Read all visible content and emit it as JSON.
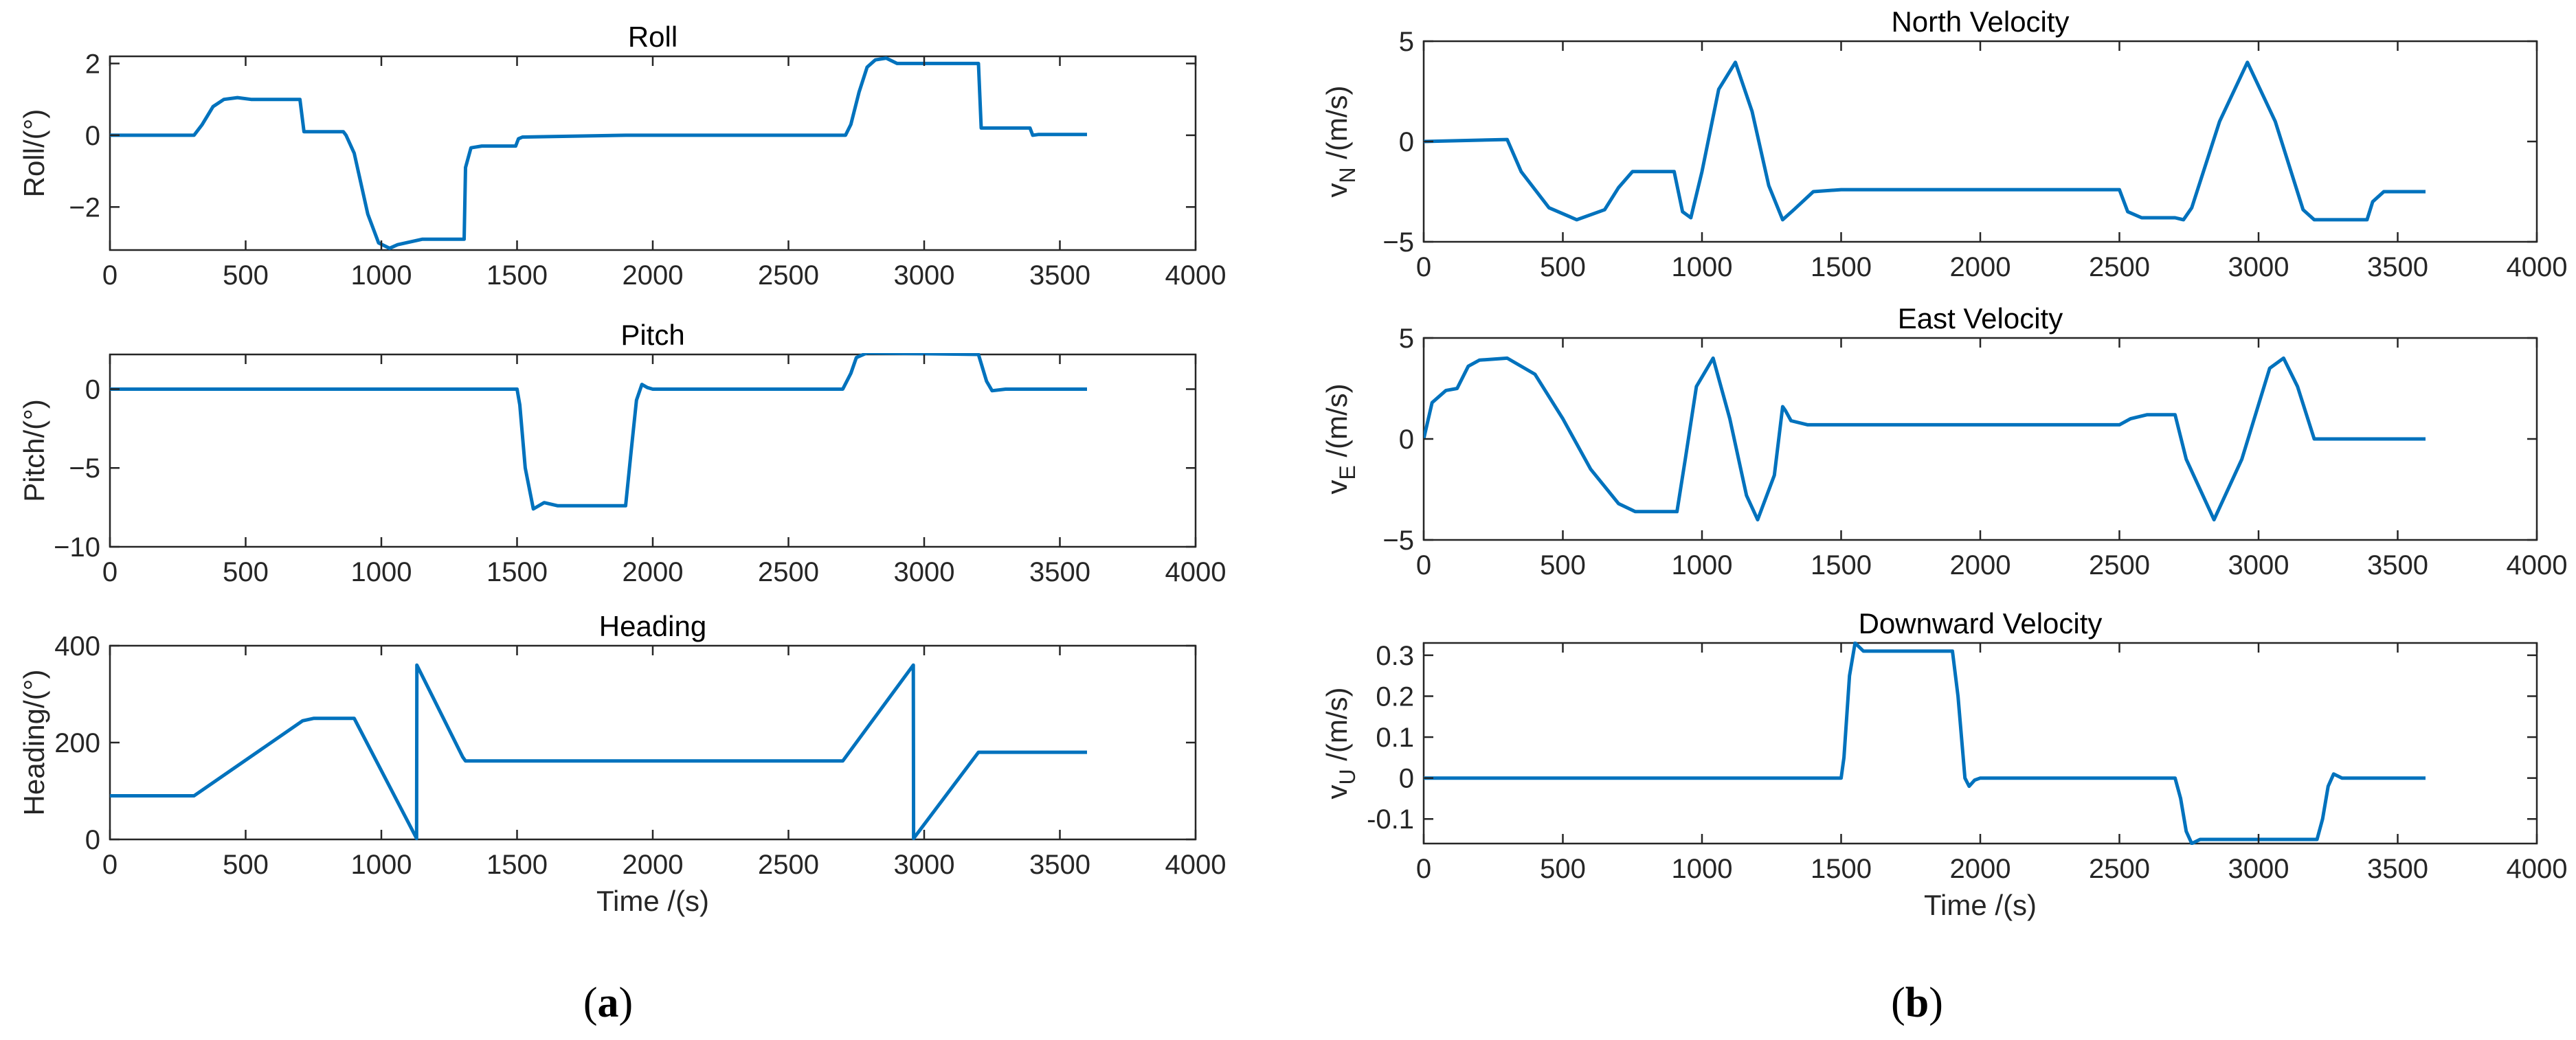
{
  "figure": {
    "panel_labels": [
      {
        "open": "(",
        "letter": "a",
        "close": ")"
      },
      {
        "open": "(",
        "letter": "b",
        "close": ")"
      }
    ]
  },
  "colors": {
    "line": "#0072BD",
    "axis": "#262626"
  },
  "chart_data": [
    {
      "id": "roll",
      "type": "line",
      "title": "Roll",
      "xlabel": "",
      "ylabel": "Roll/(°)",
      "xlim": [
        0,
        4000
      ],
      "ylim": [
        -3.2,
        2.2
      ],
      "xticks": [
        0,
        500,
        1000,
        1500,
        2000,
        2500,
        3000,
        3500,
        4000
      ],
      "yticks": [
        -2,
        0,
        2
      ],
      "ytick_labels": [
        "−2",
        "0",
        "2"
      ],
      "x": [
        0,
        310,
        340,
        380,
        420,
        470,
        520,
        700,
        715,
        860,
        870,
        900,
        950,
        990,
        1030,
        1060,
        1150,
        1305,
        1310,
        1330,
        1370,
        1495,
        1505,
        1520,
        1900,
        2000,
        2710,
        2730,
        2760,
        2790,
        2820,
        2860,
        2900,
        3200,
        3210,
        3240,
        3390,
        3400,
        3420,
        3600
      ],
      "y": [
        0,
        0,
        0.3,
        0.8,
        1.0,
        1.05,
        1.0,
        1.0,
        0.1,
        0.1,
        0,
        -0.5,
        -2.2,
        -3.0,
        -3.15,
        -3.05,
        -2.9,
        -2.9,
        -0.9,
        -0.35,
        -0.3,
        -0.3,
        -0.1,
        -0.05,
        0,
        0,
        0,
        0.3,
        1.2,
        1.9,
        2.1,
        2.15,
        2.0,
        2.0,
        0.2,
        0.2,
        0.2,
        0.0,
        0.02,
        0.02
      ]
    },
    {
      "id": "pitch",
      "type": "line",
      "title": "Pitch",
      "xlabel": "",
      "ylabel": "Pitch/(°)",
      "xlim": [
        0,
        4000
      ],
      "ylim": [
        -10,
        2.2
      ],
      "xticks": [
        0,
        500,
        1000,
        1500,
        2000,
        2500,
        3000,
        3500,
        4000
      ],
      "yticks": [
        -10,
        -5,
        0
      ],
      "ytick_labels": [
        "−10",
        "−5",
        "0"
      ],
      "x": [
        0,
        1500,
        1510,
        1530,
        1560,
        1600,
        1650,
        1900,
        1920,
        1940,
        1960,
        1980,
        2000,
        2020,
        2700,
        2730,
        2750,
        2790,
        3200,
        3230,
        3250,
        3300,
        3600
      ],
      "y": [
        0,
        0,
        -1,
        -5,
        -7.6,
        -7.2,
        -7.4,
        -7.4,
        -4,
        -0.7,
        0.3,
        0.1,
        0,
        0,
        0,
        1.0,
        2.0,
        2.3,
        2.2,
        0.5,
        -0.1,
        0,
        0
      ]
    },
    {
      "id": "heading",
      "type": "line",
      "title": "Heading",
      "xlabel": "Time /(s)",
      "ylabel": "Heading/(°)",
      "xlim": [
        0,
        4000
      ],
      "ylim": [
        0,
        400
      ],
      "xticks": [
        0,
        500,
        1000,
        1500,
        2000,
        2500,
        3000,
        3500,
        4000
      ],
      "yticks": [
        0,
        200,
        400
      ],
      "ytick_labels": [
        "0",
        "200",
        "400"
      ],
      "x": [
        0,
        310,
        710,
        750,
        900,
        1130,
        1131,
        1300,
        1310,
        2700,
        2960,
        2961,
        3200,
        3600
      ],
      "y": [
        90,
        90,
        245,
        250,
        250,
        2,
        360,
        170,
        162,
        162,
        360,
        2,
        180,
        180
      ]
    },
    {
      "id": "north_velocity",
      "type": "line",
      "title": "North Velocity",
      "xlabel": "",
      "ylabel": "v_N /(m/s)",
      "xlim": [
        0,
        4000
      ],
      "ylim": [
        -5,
        5
      ],
      "xticks": [
        0,
        500,
        1000,
        1500,
        2000,
        2500,
        3000,
        3500,
        4000
      ],
      "yticks": [
        -5,
        0,
        5
      ],
      "ytick_labels": [
        "−5",
        "0",
        "5"
      ],
      "x": [
        0,
        300,
        350,
        450,
        550,
        650,
        700,
        750,
        900,
        930,
        960,
        1000,
        1060,
        1120,
        1180,
        1240,
        1290,
        1330,
        1400,
        1500,
        2500,
        2530,
        2580,
        2700,
        2730,
        2760,
        2860,
        2960,
        3060,
        3160,
        3200,
        3390,
        3410,
        3450,
        3600
      ],
      "y": [
        0,
        0.1,
        -1.5,
        -3.3,
        -3.9,
        -3.4,
        -2.3,
        -1.5,
        -1.5,
        -3.5,
        -3.8,
        -1.5,
        2.6,
        3.95,
        1.5,
        -2.2,
        -3.9,
        -3.4,
        -2.5,
        -2.4,
        -2.4,
        -3.5,
        -3.8,
        -3.8,
        -3.9,
        -3.3,
        1.0,
        3.95,
        1.0,
        -3.4,
        -3.9,
        -3.9,
        -3.0,
        -2.5,
        -2.5
      ]
    },
    {
      "id": "east_velocity",
      "type": "line",
      "title": "East Velocity",
      "xlabel": "",
      "ylabel": "v_E /(m/s)",
      "xlim": [
        0,
        4000
      ],
      "ylim": [
        -5,
        5
      ],
      "xticks": [
        0,
        500,
        1000,
        1500,
        2000,
        2500,
        3000,
        3500,
        4000
      ],
      "yticks": [
        -5,
        0,
        5
      ],
      "ytick_labels": [
        "−5",
        "0",
        "5"
      ],
      "x": [
        0,
        30,
        80,
        120,
        160,
        200,
        300,
        400,
        500,
        600,
        700,
        760,
        910,
        940,
        980,
        1040,
        1100,
        1160,
        1200,
        1260,
        1290,
        1300,
        1320,
        1380,
        2500,
        2540,
        2600,
        2700,
        2740,
        2840,
        2940,
        3040,
        3090,
        3140,
        3200,
        3600
      ],
      "y": [
        0,
        1.8,
        2.4,
        2.5,
        3.6,
        3.9,
        4.0,
        3.2,
        1.0,
        -1.5,
        -3.2,
        -3.6,
        -3.6,
        -1.0,
        2.6,
        4.0,
        1.0,
        -2.8,
        -4.0,
        -1.8,
        1.6,
        1.4,
        0.9,
        0.7,
        0.7,
        1.0,
        1.2,
        1.2,
        -1.0,
        -4.0,
        -1.0,
        3.5,
        4.0,
        2.6,
        0,
        0
      ]
    },
    {
      "id": "downward_velocity",
      "type": "line",
      "title": "Downward Velocity",
      "xlabel": "Time /(s)",
      "ylabel": "v_U /(m/s)",
      "xlim": [
        0,
        4000
      ],
      "ylim": [
        -0.16,
        0.33
      ],
      "xticks": [
        0,
        500,
        1000,
        1500,
        2000,
        2500,
        3000,
        3500,
        4000
      ],
      "yticks": [
        -0.1,
        0,
        0.1,
        0.2,
        0.3
      ],
      "ytick_labels": [
        "-0.1",
        "0",
        "0.1",
        "0.2",
        "0.3"
      ],
      "x": [
        0,
        1500,
        1510,
        1530,
        1550,
        1580,
        1620,
        1900,
        1920,
        1945,
        1960,
        1980,
        2000,
        2020,
        2700,
        2720,
        2740,
        2760,
        2790,
        2830,
        3210,
        3230,
        3250,
        3270,
        3300,
        3600
      ],
      "y": [
        0,
        0,
        0.05,
        0.25,
        0.33,
        0.31,
        0.31,
        0.31,
        0.2,
        0.0,
        -0.02,
        -0.005,
        0,
        0,
        0,
        -0.05,
        -0.13,
        -0.16,
        -0.15,
        -0.15,
        -0.15,
        -0.1,
        -0.02,
        0.01,
        0.0,
        0.0
      ]
    }
  ]
}
